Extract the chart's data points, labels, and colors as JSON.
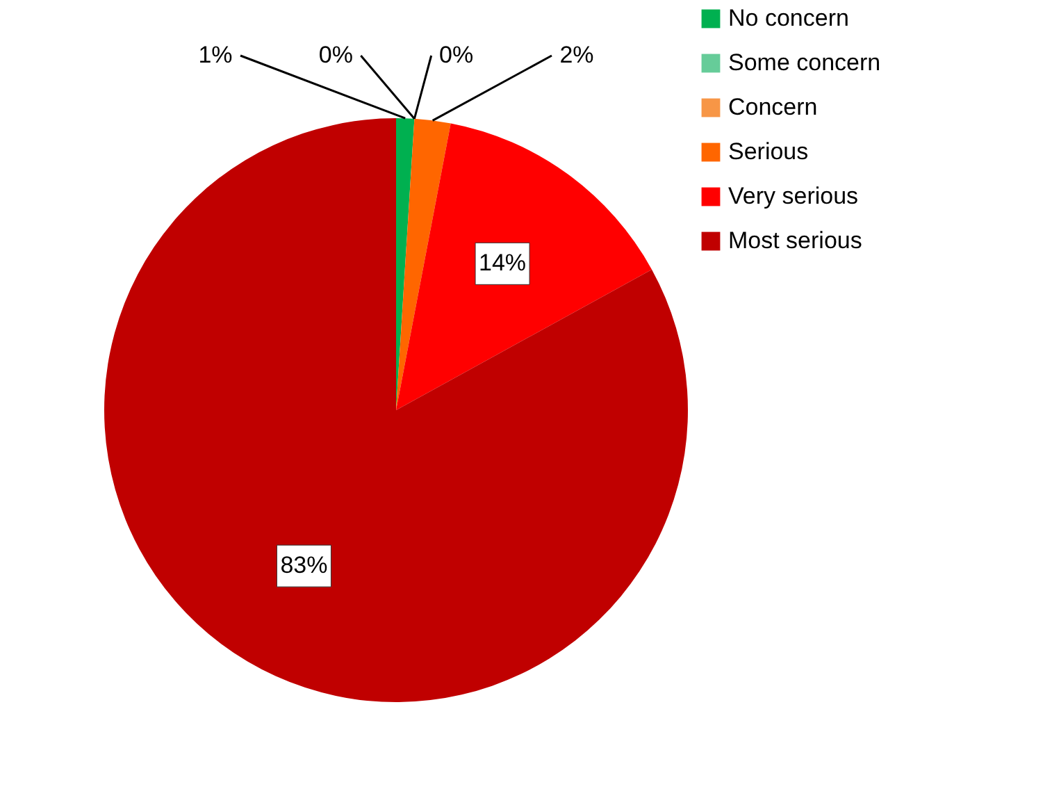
{
  "chart_data": {
    "type": "pie",
    "categories": [
      "No concern",
      "Some concern",
      "Concern",
      "Serious",
      "Very serious",
      "Most serious"
    ],
    "values": [
      1,
      0,
      0,
      2,
      14,
      83
    ],
    "colors": [
      "#00b050",
      "#66cc99",
      "#f79646",
      "#ff6600",
      "#ff0000",
      "#c00000"
    ],
    "value_labels": [
      "1%",
      "0%",
      "0%",
      "2%",
      "14%",
      "83%"
    ],
    "legend": "right"
  }
}
